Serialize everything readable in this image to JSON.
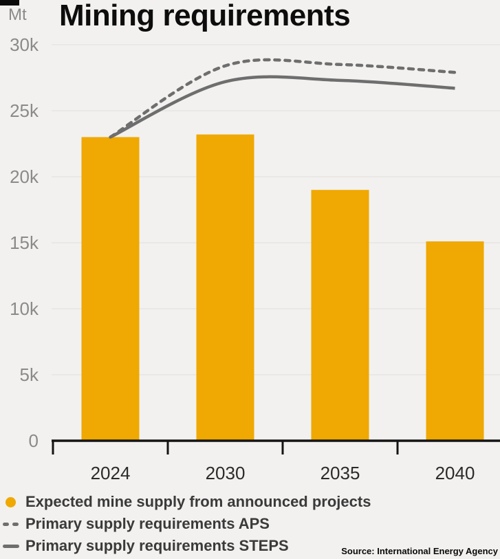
{
  "chart_data": {
    "type": "bar",
    "title": "Mining requirements",
    "unit_label": "Mt",
    "categories": [
      "2024",
      "2030",
      "2035",
      "2040"
    ],
    "bar_series": {
      "name": "Expected mine supply from announced projects",
      "color": "#F0A802",
      "values": [
        23000,
        23200,
        19000,
        15100
      ]
    },
    "line_series": [
      {
        "name": "Primary supply requirements APS",
        "style": "dashed",
        "color": "#6E6E6E",
        "values": [
          23000,
          28400,
          28500,
          27900
        ]
      },
      {
        "name": "Primary supply requirements STEPS",
        "style": "solid",
        "color": "#6E6E6E",
        "values": [
          23000,
          27200,
          27300,
          26700
        ]
      }
    ],
    "ylim": [
      0,
      30000
    ],
    "ytick_step": 5000,
    "ytick_labels": [
      "0",
      "5k",
      "10k",
      "15k",
      "20k",
      "25k",
      "30k"
    ],
    "grid": true,
    "legend_position": "bottom-left"
  },
  "source": "Source: International Energy Agency",
  "colors": {
    "background": "#F2F1EF",
    "bar": "#F0A802",
    "line": "#6E6E6E",
    "grid": "#E7E6E3",
    "axis": "#141414",
    "ytick_label": "#8A8A8A",
    "xtick_label": "#2B2B2B",
    "legend_text": "#3A3A3A"
  }
}
